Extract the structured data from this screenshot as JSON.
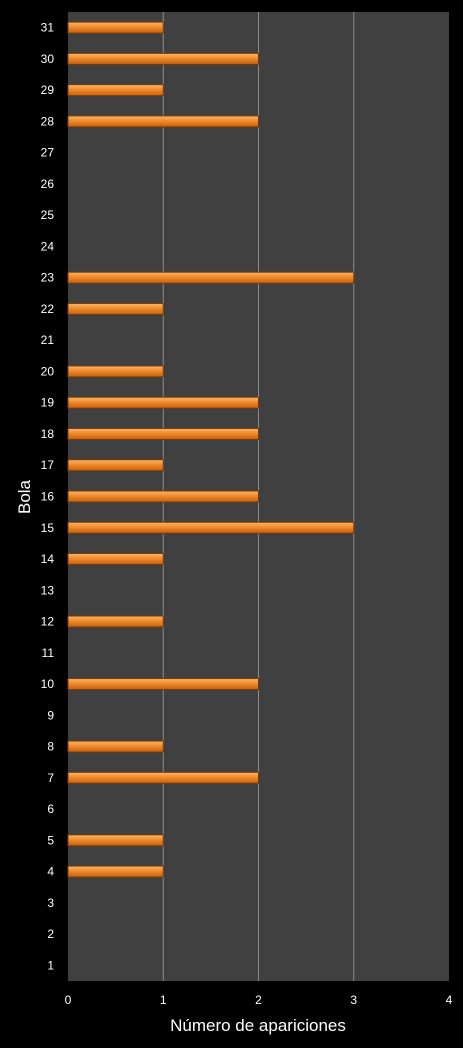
{
  "chart_data": {
    "type": "bar",
    "orientation": "horizontal",
    "xlabel": "Número de apariciones",
    "ylabel": "Bola",
    "xlim": [
      0,
      4
    ],
    "xticks": [
      0,
      1,
      2,
      3,
      4
    ],
    "grid": true,
    "categories": [
      "1",
      "2",
      "3",
      "4",
      "5",
      "6",
      "7",
      "8",
      "9",
      "10",
      "11",
      "12",
      "13",
      "14",
      "15",
      "16",
      "17",
      "18",
      "19",
      "20",
      "21",
      "22",
      "23",
      "24",
      "25",
      "26",
      "27",
      "28",
      "29",
      "30",
      "31"
    ],
    "values": [
      0,
      0,
      0,
      1,
      1,
      0,
      2,
      1,
      0,
      2,
      0,
      1,
      0,
      1,
      3,
      2,
      1,
      2,
      2,
      1,
      0,
      1,
      3,
      0,
      0,
      0,
      0,
      2,
      1,
      2,
      1
    ],
    "colors": {
      "background": "#000000",
      "plot_area": "#404040",
      "gridline": "#8c8c8c",
      "bar": "#f08a2c",
      "bar_highlight": "#fbb86c",
      "bar_edge": "#7a3a05",
      "text": "#ffffff"
    }
  }
}
